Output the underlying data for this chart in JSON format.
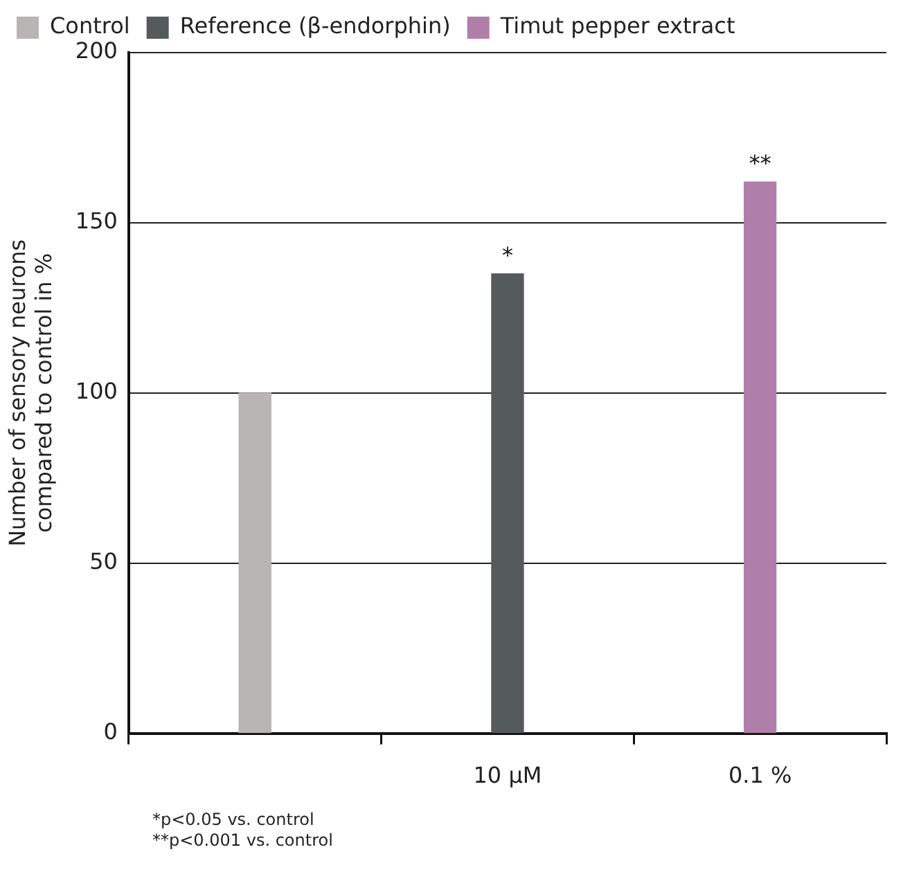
{
  "chart_data": {
    "type": "bar",
    "ylabel": "Number of sensory neurons compared to control in %",
    "categories": [
      null,
      "10 µM",
      "0.1 %"
    ],
    "series": [
      {
        "name": "Control",
        "color": "#b9b5b2",
        "values": [
          100,
          null,
          null
        ]
      },
      {
        "name": "Reference (β-endorphin)",
        "color": "#555a5a",
        "values": [
          null,
          135,
          null
        ]
      },
      {
        "name": "Timut pepper extract",
        "color": "#b07fa9",
        "values": [
          null,
          null,
          162
        ]
      }
    ],
    "ylim": [
      0,
      200
    ],
    "yticks": [
      0,
      50,
      100,
      150,
      200
    ],
    "grid": "y",
    "legend": "top left",
    "annotations": [
      {
        "text": "*",
        "x": "10 µM",
        "y": 135
      },
      {
        "text": "**",
        "x": "0.1 %",
        "y": 162
      },
      "*p<0.05 vs. control",
      "**p<0.001 vs. control"
    ]
  }
}
